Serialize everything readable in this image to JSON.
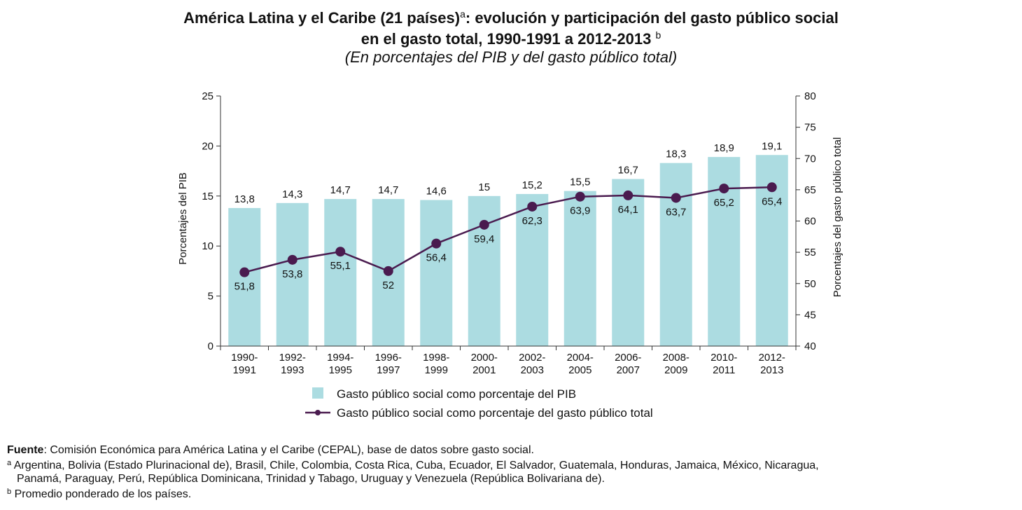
{
  "title": {
    "line1": "América Latina y el Caribe (21 países)",
    "line1_sup": "a",
    "line1_rest": ": evolución y participación del gasto público social",
    "line2": "en el gasto total, 1990-1991 a 2012-2013",
    "line2_sup": "b",
    "subtitle": "(En porcentajes del PIB y del gasto público total)"
  },
  "chart_data": {
    "type": "bar",
    "categories": [
      [
        "1990-",
        "1991"
      ],
      [
        "1992-",
        "1993"
      ],
      [
        "1994-",
        "1995"
      ],
      [
        "1996-",
        "1997"
      ],
      [
        "1998-",
        "1999"
      ],
      [
        "2000-",
        "2001"
      ],
      [
        "2002-",
        "2003"
      ],
      [
        "2004-",
        "2005"
      ],
      [
        "2006-",
        "2007"
      ],
      [
        "2008-",
        "2009"
      ],
      [
        "2010-",
        "2011"
      ],
      [
        "2012-",
        "2013"
      ]
    ],
    "series": [
      {
        "name": "Gasto público social como porcentaje del PIB",
        "type": "bar",
        "axis": "left",
        "values": [
          13.8,
          14.3,
          14.7,
          14.7,
          14.6,
          15,
          15.2,
          15.5,
          16.7,
          18.3,
          18.9,
          19.1
        ],
        "labels": [
          "13,8",
          "14,3",
          "14,7",
          "14,7",
          "14,6",
          "15",
          "15,2",
          "15,5",
          "16,7",
          "18,3",
          "18,9",
          "19,1"
        ],
        "color": "#acdce1"
      },
      {
        "name": "Gasto público social como porcentaje del gasto público total",
        "type": "line",
        "axis": "right",
        "values": [
          51.8,
          53.8,
          55.1,
          52,
          56.4,
          59.4,
          62.3,
          63.9,
          64.1,
          63.7,
          65.2,
          65.4
        ],
        "labels": [
          "51,8",
          "53,8",
          "55,1",
          "52",
          "56,4",
          "59,4",
          "62,3",
          "63,9",
          "64,1",
          "63,7",
          "65,2",
          "65,4"
        ],
        "color": "#4a1b4f"
      }
    ],
    "ylabel": "Porcentajes del PIB",
    "y2label": "Porcentajes del gasto público total",
    "ylim": [
      0,
      25
    ],
    "yticks": [
      0,
      5,
      10,
      15,
      20,
      25
    ],
    "y2lim": [
      40,
      80
    ],
    "y2ticks": [
      40,
      45,
      50,
      55,
      60,
      65,
      70,
      75,
      80
    ],
    "grid": false,
    "legend_position": "bottom"
  },
  "notes": {
    "source_label": "Fuente",
    "source_text": ": Comisión Económica para América Latina y el Caribe (CEPAL), base de datos sobre gasto social.",
    "a_mark": "a",
    "a_line1": "Argentina, Bolivia (Estado Plurinacional de), Brasil, Chile, Colombia, Costa Rica, Cuba, Ecuador, El Salvador, Guatemala, Honduras, Jamaica, México, Nicaragua,",
    "a_line2": "Panamá, Paraguay, Perú, República Dominicana, Trinidad y Tabago, Uruguay y Venezuela (República Bolivariana de).",
    "b_mark": "b",
    "b_text": "Promedio ponderado de los países."
  }
}
